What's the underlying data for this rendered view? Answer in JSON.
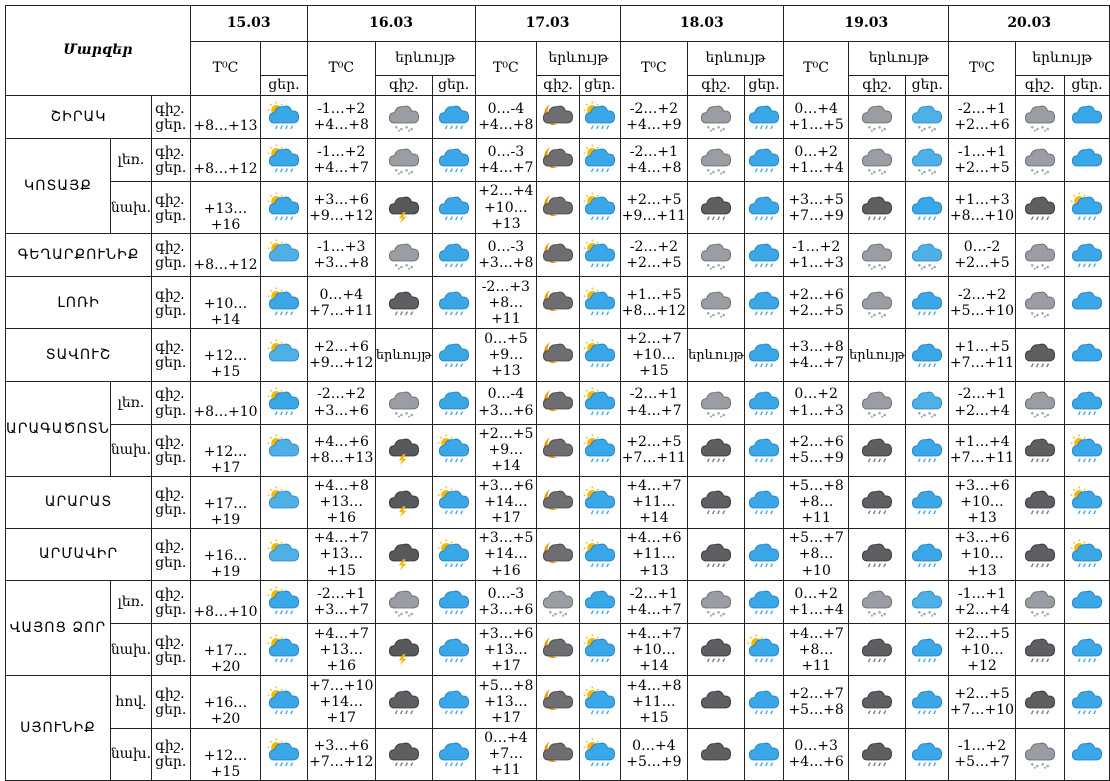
{
  "title": "Մարզեր",
  "dates": [
    "15.03",
    "16.03",
    "17.03",
    "18.03",
    "19.03",
    "20.03"
  ],
  "header": {
    "temp": "T⁰C",
    "phen": "երևույթ",
    "night": "գիշ.",
    "day": "ցեր."
  },
  "regions": [
    {
      "name": "ՇԻՐԱԿ",
      "rows": [
        {
          "sub": "",
          "labels": [
            "գիշ.",
            "ցեր."
          ],
          "d15": {
            "t": "+8…+13",
            "i": "sun-cloud-rain"
          },
          "days": [
            {
              "t": [
                "-1…+2",
                "+4…+8"
              ],
              "n": "cloud-snow",
              "d": "cloud-rain"
            },
            {
              "t": [
                "0…-4",
                "+4…+8"
              ],
              "n": "moon-cloud",
              "d": "sun-cloud-rain"
            },
            {
              "t": [
                "-2…+2",
                "+4…+9"
              ],
              "n": "cloud-snow",
              "d": "cloud-rain"
            },
            {
              "t": [
                "0…+4",
                "+1…+5"
              ],
              "n": "cloud-snow",
              "d": "cloud-snow-blue"
            },
            {
              "t": [
                "-2…+1",
                "+2…+6"
              ],
              "n": "cloud-snow",
              "d": "cloud-blue"
            }
          ]
        }
      ]
    },
    {
      "name": "ԿՈՏԱՅՔ",
      "rows": [
        {
          "sub": "լեռ.",
          "labels": [
            "գիշ.",
            "ցեր."
          ],
          "d15": {
            "t": "+8…+12",
            "i": "sun-cloud-rain"
          },
          "days": [
            {
              "t": [
                "-1…+2",
                "+4…+7"
              ],
              "n": "cloud-snow",
              "d": "cloud-rain"
            },
            {
              "t": [
                "0…-3",
                "+4…+7"
              ],
              "n": "moon-cloud",
              "d": "sun-cloud-rain"
            },
            {
              "t": [
                "-2…+1",
                "+4…+8"
              ],
              "n": "cloud-snow",
              "d": "cloud-rain"
            },
            {
              "t": [
                "0…+2",
                "+1…+4"
              ],
              "n": "cloud-snow",
              "d": "cloud-snow-blue"
            },
            {
              "t": [
                "-1…+1",
                "+2…+5"
              ],
              "n": "cloud-snow",
              "d": "cloud-blue"
            }
          ]
        },
        {
          "sub": "նախ.",
          "labels": [
            "գիշ.",
            "ցեր."
          ],
          "d15": {
            "t": "+13…+16",
            "i": "sun-cloud-rain"
          },
          "days": [
            {
              "t": [
                "+3…+6",
                "+9…+12"
              ],
              "n": "cloud-thunder",
              "d": "cloud-rain"
            },
            {
              "t": [
                "+2…+4",
                "+10…+13"
              ],
              "n": "moon-cloud",
              "d": "sun-cloud-rain"
            },
            {
              "t": [
                "+2…+5",
                "+9…+11"
              ],
              "n": "dark-cloud-rain",
              "d": "cloud-rain"
            },
            {
              "t": [
                "+3…+5",
                "+7…+9"
              ],
              "n": "dark-cloud-rain",
              "d": "cloud-rain"
            },
            {
              "t": [
                "+1…+3",
                "+8…+10"
              ],
              "n": "dark-cloud-rain",
              "d": "sun-cloud-rain"
            }
          ]
        }
      ]
    },
    {
      "name": "ԳԵՂԱՐՔՈՒՆԻՔ",
      "rows": [
        {
          "sub": "",
          "labels": [
            "գիշ.",
            "ցեր."
          ],
          "d15": {
            "t": "+8…+12",
            "i": "sun-cloud"
          },
          "days": [
            {
              "t": [
                "-1…+3",
                "+3…+8"
              ],
              "n": "cloud-snow",
              "d": "cloud-rain"
            },
            {
              "t": [
                "0…-3",
                "+3…+8"
              ],
              "n": "moon-cloud",
              "d": "sun-cloud-rain"
            },
            {
              "t": [
                "-2…+2",
                "+2…+5"
              ],
              "n": "cloud-snow",
              "d": "cloud-rain"
            },
            {
              "t": [
                "-1…+2",
                "+1…+3"
              ],
              "n": "cloud-snow",
              "d": "cloud-snow-blue"
            },
            {
              "t": [
                "0…-2",
                "+2…+5"
              ],
              "n": "cloud-snow",
              "d": "cloud-rain"
            }
          ]
        }
      ]
    },
    {
      "name": "ԼՈՌԻ",
      "rows": [
        {
          "sub": "",
          "labels": [
            "գիշ.",
            "ցեր."
          ],
          "d15": {
            "t": "+10…+14",
            "i": "sun-cloud-rain"
          },
          "days": [
            {
              "t": [
                "0…+4",
                "+7…+11"
              ],
              "n": "dark-cloud-rain",
              "d": "cloud-rain"
            },
            {
              "t": [
                "-2…+3",
                "+8…+11"
              ],
              "n": "moon-cloud",
              "d": "sun-cloud-rain"
            },
            {
              "t": [
                "+1…+5",
                "+8…+12"
              ],
              "n": "cloud-snow",
              "d": "cloud-rain"
            },
            {
              "t": [
                "+2…+6",
                "+2…+5"
              ],
              "n": "cloud-snow",
              "d": "cloud-rain"
            },
            {
              "t": [
                "-2…+2",
                "+5…+10"
              ],
              "n": "cloud-snow",
              "d": "cloud-blue"
            }
          ]
        }
      ]
    },
    {
      "name": "ՏԱՎՈՒՇ",
      "rows": [
        {
          "sub": "",
          "labels": [
            "գիշ.",
            "ցեր."
          ],
          "d15": {
            "t": "+12…+15",
            "i": "sun-cloud"
          },
          "days": [
            {
              "t": [
                "+2…+6",
                "+9…+12"
              ],
              "n": "text",
              "d": "cloud-rain"
            },
            {
              "t": [
                "0…+5",
                "+9…+13"
              ],
              "n": "moon-cloud",
              "d": "sun-cloud-rain"
            },
            {
              "t": [
                "+2…+7",
                "+10…+15"
              ],
              "n": "text",
              "d": "cloud-rain"
            },
            {
              "t": [
                "+3…+8",
                "+4…+7"
              ],
              "n": "text",
              "d": "cloud-rain"
            },
            {
              "t": [
                "+1…+5",
                "+7…+11"
              ],
              "n": "dark-cloud-rain",
              "d": "cloud-blue"
            }
          ]
        }
      ]
    },
    {
      "name": "ԱՐԱԳԱԾՈՏՆ",
      "rows": [
        {
          "sub": "լեռ.",
          "labels": [
            "գիշ.",
            "ցեր."
          ],
          "d15": {
            "t": "+8…+10",
            "i": "sun-cloud-rain"
          },
          "days": [
            {
              "t": [
                "-2…+2",
                "+3…+6"
              ],
              "n": "cloud-snow",
              "d": "cloud-rain"
            },
            {
              "t": [
                "0…-4",
                "+3…+6"
              ],
              "n": "moon-cloud",
              "d": "sun-cloud-rain"
            },
            {
              "t": [
                "-2…+1",
                "+4…+7"
              ],
              "n": "cloud-snow",
              "d": "cloud-rain"
            },
            {
              "t": [
                "0…+2",
                "+1…+3"
              ],
              "n": "cloud-snow",
              "d": "cloud-snow-blue"
            },
            {
              "t": [
                "-2…+1",
                "+2…+4"
              ],
              "n": "cloud-snow",
              "d": "cloud-rain"
            }
          ]
        },
        {
          "sub": "նախ.",
          "labels": [
            "գիշ.",
            "ցեր."
          ],
          "d15": {
            "t": "+12…+17",
            "i": "sun-cloud"
          },
          "days": [
            {
              "t": [
                "+4…+6",
                "+8…+13"
              ],
              "n": "cloud-thunder",
              "d": "sun-cloud-rain"
            },
            {
              "t": [
                "+2…+5",
                "+9…+14"
              ],
              "n": "moon-cloud",
              "d": "sun-cloud-rain"
            },
            {
              "t": [
                "+2…+5",
                "+7…+11"
              ],
              "n": "dark-cloud-rain",
              "d": "cloud-rain"
            },
            {
              "t": [
                "+2…+6",
                "+5…+9"
              ],
              "n": "dark-cloud-rain",
              "d": "cloud-rain"
            },
            {
              "t": [
                "+1…+4",
                "+7…+11"
              ],
              "n": "dark-cloud-rain",
              "d": "sun-cloud-rain"
            }
          ]
        }
      ]
    },
    {
      "name": "ԱՐԱՐԱՏ",
      "rows": [
        {
          "sub": "",
          "labels": [
            "գիշ.",
            "ցեր."
          ],
          "d15": {
            "t": "+17…+19",
            "i": "sun-cloud"
          },
          "days": [
            {
              "t": [
                "+4…+8",
                "+13…+16"
              ],
              "n": "cloud-thunder",
              "d": "sun-cloud-rain"
            },
            {
              "t": [
                "+3…+6",
                "+14…+17"
              ],
              "n": "moon-cloud",
              "d": "sun-cloud-rain"
            },
            {
              "t": [
                "+4…+7",
                "+11…+14"
              ],
              "n": "dark-cloud-rain",
              "d": "cloud-rain"
            },
            {
              "t": [
                "+5…+8",
                "+8…+11"
              ],
              "n": "dark-cloud-rain",
              "d": "cloud-rain"
            },
            {
              "t": [
                "+3…+6",
                "+10…+13"
              ],
              "n": "dark-cloud-rain",
              "d": "sun-cloud-rain"
            }
          ]
        }
      ]
    },
    {
      "name": "ԱՐՄԱՎԻՐ",
      "rows": [
        {
          "sub": "",
          "labels": [
            "գիշ.",
            "ցեր."
          ],
          "d15": {
            "t": "+16…+19",
            "i": "sun-cloud"
          },
          "days": [
            {
              "t": [
                "+4…+7",
                "+13…+15"
              ],
              "n": "cloud-thunder",
              "d": "sun-cloud-rain"
            },
            {
              "t": [
                "+3…+5",
                "+14…+16"
              ],
              "n": "moon-cloud",
              "d": "sun-cloud-rain"
            },
            {
              "t": [
                "+4…+6",
                "+11…+13"
              ],
              "n": "dark-cloud-rain",
              "d": "cloud-rain"
            },
            {
              "t": [
                "+5…+7",
                "+8…+10"
              ],
              "n": "dark-cloud-rain",
              "d": "cloud-rain"
            },
            {
              "t": [
                "+3…+6",
                "+10…+13"
              ],
              "n": "dark-cloud-rain",
              "d": "sun-cloud-rain"
            }
          ]
        }
      ]
    },
    {
      "name": "ՎԱՅՈՑ ՁՈՐ",
      "rows": [
        {
          "sub": "լեռ.",
          "labels": [
            "գիշ.",
            "ցեր."
          ],
          "d15": {
            "t": "+8…+10",
            "i": "sun-cloud-rain"
          },
          "days": [
            {
              "t": [
                "-2…+1",
                "+3…+7"
              ],
              "n": "cloud-snow",
              "d": "cloud-rain"
            },
            {
              "t": [
                "0…-3",
                "+3…+6"
              ],
              "n": "cloud-snow",
              "d": "cloud-rain"
            },
            {
              "t": [
                "-2…+1",
                "+4…+7"
              ],
              "n": "cloud-snow",
              "d": "cloud-rain"
            },
            {
              "t": [
                "0…+2",
                "+1…+4"
              ],
              "n": "cloud-snow",
              "d": "cloud-snow-blue"
            },
            {
              "t": [
                "-1…+1",
                "+2…+4"
              ],
              "n": "cloud-snow",
              "d": "cloud-blue"
            }
          ]
        },
        {
          "sub": "նախ.",
          "labels": [
            "գիշ.",
            "ցեր."
          ],
          "d15": {
            "t": "+17…+20",
            "i": "sun-cloud-rain"
          },
          "days": [
            {
              "t": [
                "+4…+7",
                "+13…+16"
              ],
              "n": "cloud-thunder",
              "d": "cloud-rain"
            },
            {
              "t": [
                "+3…+6",
                "+13…+17"
              ],
              "n": "moon-cloud",
              "d": "sun-cloud-rain"
            },
            {
              "t": [
                "+4…+7",
                "+10…+14"
              ],
              "n": "dark-cloud-rain",
              "d": "sun-cloud-rain"
            },
            {
              "t": [
                "+4…+7",
                "+8…+11"
              ],
              "n": "dark-cloud-rain",
              "d": "cloud-rain"
            },
            {
              "t": [
                "+2…+5",
                "+10…+12"
              ],
              "n": "dark-cloud-rain",
              "d": "cloud-rain"
            }
          ]
        }
      ]
    },
    {
      "name": "ՍՅՈՒՆԻՔ",
      "rows": [
        {
          "sub": "հով.",
          "labels": [
            "գիշ.",
            "ցեր."
          ],
          "d15": {
            "t": "+16…+20",
            "i": "sun-cloud-rain"
          },
          "days": [
            {
              "t": [
                "+7…+10",
                "+14…+17"
              ],
              "n": "dark-cloud-rain",
              "d": "cloud-rain"
            },
            {
              "t": [
                "+5…+8",
                "+13…+17"
              ],
              "n": "moon-cloud",
              "d": "sun-cloud-rain"
            },
            {
              "t": [
                "+4…+8",
                "+11…+15"
              ],
              "n": "dark-cloud",
              "d": "cloud-rain"
            },
            {
              "t": [
                "+2…+7",
                "+5…+8"
              ],
              "n": "dark-cloud-rain",
              "d": "cloud-rain"
            },
            {
              "t": [
                "+2…+5",
                "+7…+10"
              ],
              "n": "dark-cloud-rain",
              "d": "cloud-rain"
            }
          ]
        },
        {
          "sub": "նախ.",
          "labels": [
            "գիշ.",
            "ցեր."
          ],
          "d15": {
            "t": "+12…+15",
            "i": "sun-cloud-rain"
          },
          "days": [
            {
              "t": [
                "+3…+6",
                "+7…+12"
              ],
              "n": "dark-cloud-rain",
              "d": "cloud-rain"
            },
            {
              "t": [
                "0…+4",
                "+7…+11"
              ],
              "n": "moon-cloud",
              "d": "sun-cloud-rain"
            },
            {
              "t": [
                "0…+4",
                "+5…+9"
              ],
              "n": "dark-cloud",
              "d": "cloud-rain"
            },
            {
              "t": [
                "0…+3",
                "+4…+6"
              ],
              "n": "dark-cloud-rain",
              "d": "cloud-rain"
            },
            {
              "t": [
                "-1…+2",
                "+5…+7"
              ],
              "n": "cloud-snow",
              "d": "cloud-blue"
            }
          ]
        }
      ]
    }
  ]
}
